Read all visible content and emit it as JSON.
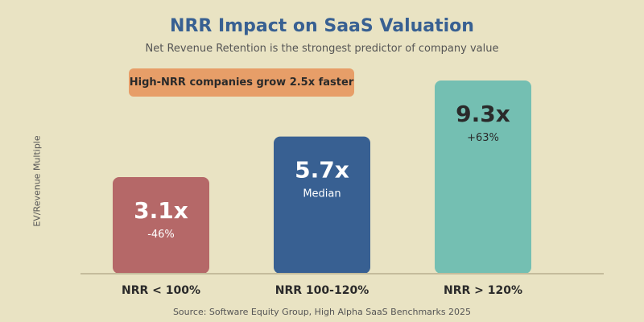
{
  "chart_data": {
    "type": "bar",
    "title": "NRR Impact on SaaS Valuation",
    "subtitle": "Net Revenue Retention is the strongest predictor of company value",
    "ylabel": "EV/Revenue Multiple",
    "xlabel": "",
    "ylim": [
      -3.1,
      9.3
    ],
    "grid": false,
    "categories": [
      "NRR < 100%",
      "NRR 100-120%",
      "NRR > 120%"
    ],
    "values": [
      3.1,
      5.7,
      9.3
    ],
    "value_labels": [
      "3.1x",
      "5.7x",
      "9.3x"
    ],
    "sub_labels": [
      "-46%",
      "Median",
      "+63%"
    ],
    "colors": [
      "#b56868",
      "#386092",
      "#74bfb2"
    ],
    "label_colors": [
      "#ffffff",
      "#ffffff",
      "#2a2a2a"
    ],
    "annotation": "High-NRR companies grow 2.5x faster",
    "annotation_color": "#e79e68",
    "source": "Source: Software Equity Group, High Alpha SaaS Benchmarks 2025"
  }
}
